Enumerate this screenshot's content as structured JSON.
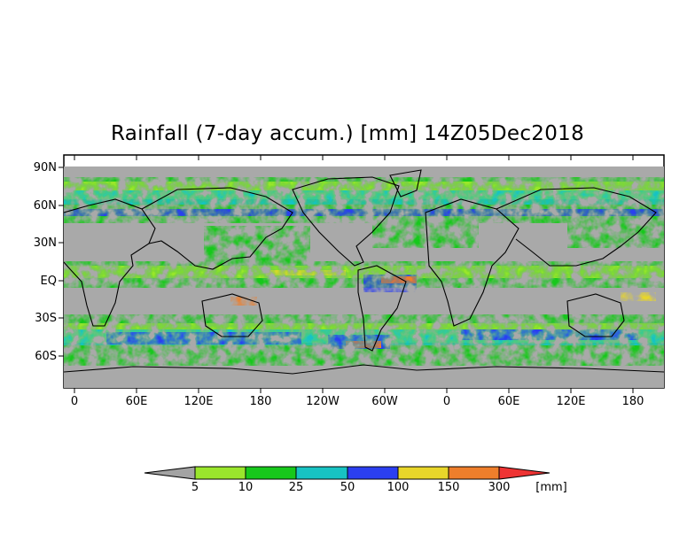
{
  "title": "Rainfall (7-day accum.) [mm] 14Z05Dec2018",
  "map": {
    "lat_labels": [
      "90N",
      "60N",
      "30N",
      "EQ",
      "30S",
      "60S"
    ],
    "lon_labels": [
      "0",
      "60E",
      "120E",
      "180",
      "120W",
      "60W",
      "0",
      "60E",
      "120E",
      "180"
    ],
    "background_color": "#a9a9a9",
    "coastline_color": "#000000"
  },
  "colorbar": {
    "tick_labels": [
      "5",
      "10",
      "25",
      "50",
      "100",
      "150",
      "300"
    ],
    "unit": "[mm]",
    "colors": [
      "#a3a3a3",
      "#9ae62c",
      "#17c81b",
      "#17c3c3",
      "#2b3ff0",
      "#e8d62a",
      "#ee7e2b",
      "#ee3333"
    ]
  }
}
